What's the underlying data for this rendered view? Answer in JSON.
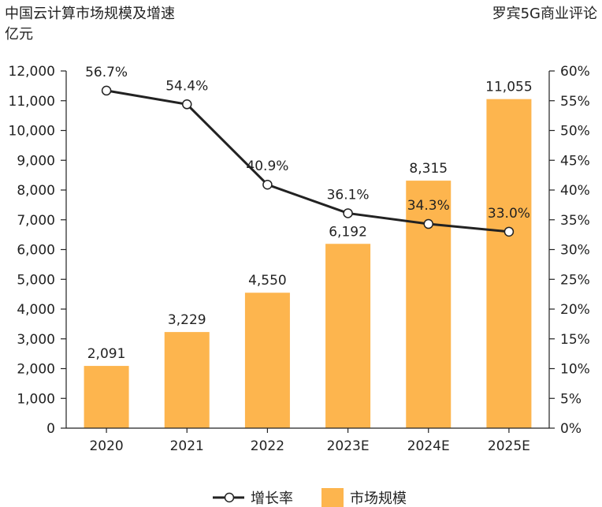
{
  "header": {
    "title": "中国云计算市场规模及增速",
    "unit": "亿元",
    "source": "罗宾5G商业评论"
  },
  "colors": {
    "bar": "#FDB54E",
    "line": "#222222",
    "marker_fill": "#ffffff"
  },
  "legend": {
    "line_label": "增长率",
    "bar_label": "市场规模"
  },
  "chart_data": {
    "type": "bar",
    "categories": [
      "2020",
      "2021",
      "2022",
      "2023E",
      "2024E",
      "2025E"
    ],
    "series": [
      {
        "name": "市场规模",
        "type": "bar",
        "axis": "left",
        "values": [
          2091,
          3229,
          4550,
          6192,
          8315,
          11055
        ],
        "labels": [
          "2,091",
          "3,229",
          "4,550",
          "6,192",
          "8,315",
          "11,055"
        ]
      },
      {
        "name": "增长率",
        "type": "line",
        "axis": "right",
        "values": [
          56.7,
          54.4,
          40.9,
          36.1,
          34.3,
          33.0
        ],
        "labels": [
          "56.7%",
          "54.4%",
          "40.9%",
          "36.1%",
          "34.3%",
          "33.0%"
        ]
      }
    ],
    "y_left": {
      "min": 0,
      "max": 12000,
      "step": 1000,
      "tick_labels": [
        "0",
        "1,000",
        "2,000",
        "3,000",
        "4,000",
        "5,000",
        "6,000",
        "7,000",
        "8,000",
        "9,000",
        "10,000",
        "11,000",
        "12,000"
      ]
    },
    "y_right": {
      "min": 0,
      "max": 60,
      "step": 5,
      "tick_labels": [
        "0%",
        "5%",
        "10%",
        "15%",
        "20%",
        "25%",
        "30%",
        "35%",
        "40%",
        "45%",
        "50%",
        "55%",
        "60%"
      ]
    },
    "grid": false,
    "legend_position": "bottom-center"
  }
}
